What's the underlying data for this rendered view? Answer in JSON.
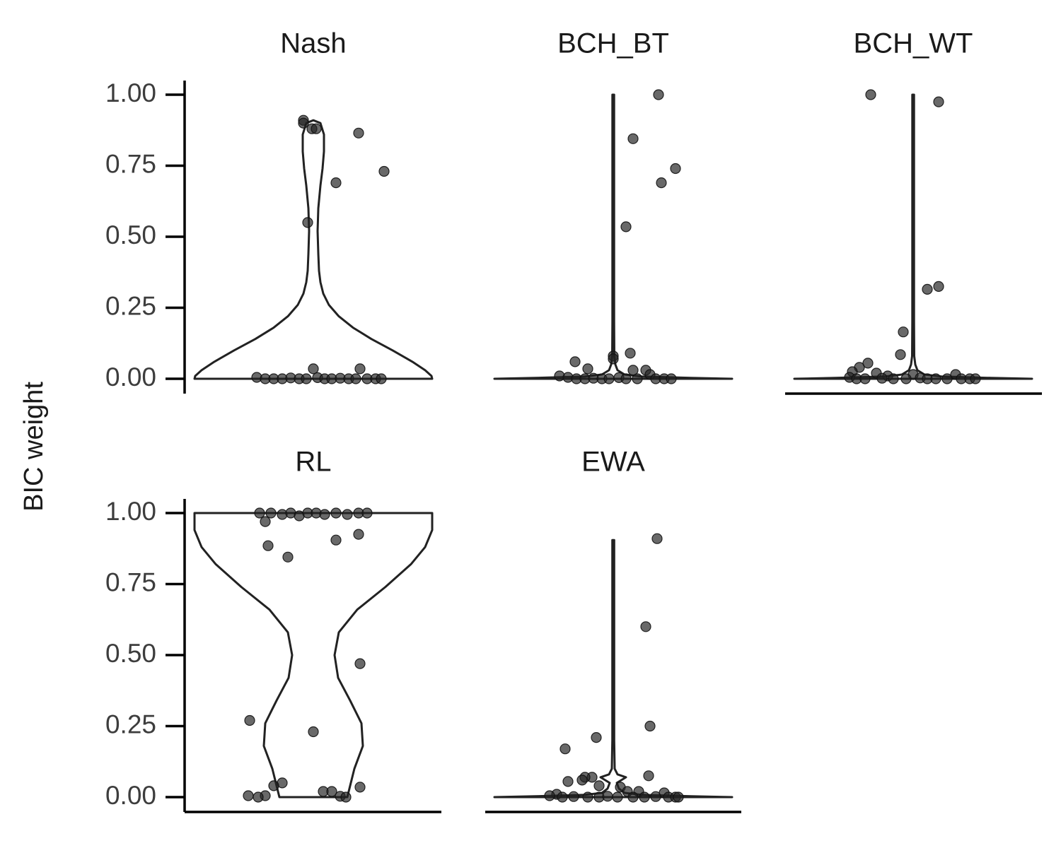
{
  "chart_data": {
    "type": "violin",
    "ylabel": "BIC weight",
    "ylim": [
      0,
      1
    ],
    "yticks": [
      "0.00",
      "0.25",
      "0.50",
      "0.75",
      "1.00"
    ],
    "grid": false,
    "point_color": "#222222",
    "line_color": "#222222",
    "panels": [
      {
        "title": "Nash",
        "violin_max": 0.91,
        "points": [
          {
            "y": 0.91,
            "j": -0.07
          },
          {
            "y": 0.9,
            "j": -0.07
          },
          {
            "y": 0.88,
            "j": -0.01
          },
          {
            "y": 0.88,
            "j": 0.02
          },
          {
            "y": 0.865,
            "j": 0.32
          },
          {
            "y": 0.73,
            "j": 0.5
          },
          {
            "y": 0.69,
            "j": 0.16
          },
          {
            "y": 0.55,
            "j": -0.04
          },
          {
            "y": 0.035,
            "j": 0.0
          },
          {
            "y": 0.035,
            "j": 0.33
          },
          {
            "y": 0.005,
            "j": -0.4
          },
          {
            "y": 0.0,
            "j": -0.34
          },
          {
            "y": 0.0,
            "j": -0.28
          },
          {
            "y": 0.0,
            "j": -0.22
          },
          {
            "y": 0.003,
            "j": -0.16
          },
          {
            "y": 0.0,
            "j": -0.1
          },
          {
            "y": 0.0,
            "j": -0.05
          },
          {
            "y": 0.004,
            "j": 0.03
          },
          {
            "y": 0.0,
            "j": 0.08
          },
          {
            "y": 0.0,
            "j": 0.13
          },
          {
            "y": 0.002,
            "j": 0.19
          },
          {
            "y": 0.0,
            "j": 0.25
          },
          {
            "y": 0.0,
            "j": 0.3
          },
          {
            "y": 0.0,
            "j": 0.38
          },
          {
            "y": 0.0,
            "j": 0.44
          },
          {
            "y": 0.0,
            "j": 0.48
          }
        ]
      },
      {
        "title": "BCH_BT",
        "violin_max": 1.0,
        "points": [
          {
            "y": 1.0,
            "j": 0.32
          },
          {
            "y": 0.845,
            "j": 0.14
          },
          {
            "y": 0.74,
            "j": 0.44
          },
          {
            "y": 0.69,
            "j": 0.34
          },
          {
            "y": 0.535,
            "j": 0.09
          },
          {
            "y": 0.09,
            "j": 0.12
          },
          {
            "y": 0.08,
            "j": 0.0
          },
          {
            "y": 0.07,
            "j": 0.0
          },
          {
            "y": 0.06,
            "j": -0.27
          },
          {
            "y": 0.035,
            "j": -0.18
          },
          {
            "y": 0.03,
            "j": 0.14
          },
          {
            "y": 0.03,
            "j": 0.23
          },
          {
            "y": 0.015,
            "j": 0.26
          },
          {
            "y": 0.01,
            "j": -0.38
          },
          {
            "y": 0.005,
            "j": -0.32
          },
          {
            "y": 0.0,
            "j": -0.26
          },
          {
            "y": 0.0,
            "j": -0.2
          },
          {
            "y": 0.002,
            "j": -0.14
          },
          {
            "y": 0.0,
            "j": -0.08
          },
          {
            "y": 0.0,
            "j": -0.03
          },
          {
            "y": 0.004,
            "j": 0.04
          },
          {
            "y": 0.0,
            "j": 0.09
          },
          {
            "y": 0.0,
            "j": 0.17
          },
          {
            "y": 0.0,
            "j": 0.3
          },
          {
            "y": 0.0,
            "j": 0.36
          },
          {
            "y": 0.0,
            "j": 0.41
          }
        ]
      },
      {
        "title": "BCH_WT",
        "violin_max": 1.0,
        "points": [
          {
            "y": 1.0,
            "j": -0.3
          },
          {
            "y": 0.975,
            "j": 0.18
          },
          {
            "y": 0.325,
            "j": 0.18
          },
          {
            "y": 0.315,
            "j": 0.1
          },
          {
            "y": 0.165,
            "j": -0.07
          },
          {
            "y": 0.085,
            "j": -0.09
          },
          {
            "y": 0.055,
            "j": -0.32
          },
          {
            "y": 0.04,
            "j": -0.38
          },
          {
            "y": 0.025,
            "j": -0.43
          },
          {
            "y": 0.02,
            "j": -0.26
          },
          {
            "y": 0.015,
            "j": 0.0
          },
          {
            "y": 0.015,
            "j": 0.3
          },
          {
            "y": 0.01,
            "j": -0.18
          },
          {
            "y": 0.005,
            "j": -0.45
          },
          {
            "y": 0.0,
            "j": -0.4
          },
          {
            "y": 0.0,
            "j": -0.34
          },
          {
            "y": 0.002,
            "j": -0.22
          },
          {
            "y": 0.0,
            "j": -0.14
          },
          {
            "y": 0.0,
            "j": -0.05
          },
          {
            "y": 0.003,
            "j": 0.05
          },
          {
            "y": 0.0,
            "j": 0.1
          },
          {
            "y": 0.0,
            "j": 0.16
          },
          {
            "y": 0.0,
            "j": 0.24
          },
          {
            "y": 0.0,
            "j": 0.34
          },
          {
            "y": 0.0,
            "j": 0.4
          },
          {
            "y": 0.0,
            "j": 0.44
          }
        ]
      },
      {
        "title": "RL",
        "violin_max": 1.0,
        "points": [
          {
            "y": 1.0,
            "j": -0.38
          },
          {
            "y": 1.0,
            "j": -0.3
          },
          {
            "y": 0.995,
            "j": -0.22
          },
          {
            "y": 1.0,
            "j": -0.16
          },
          {
            "y": 0.99,
            "j": -0.1
          },
          {
            "y": 1.0,
            "j": -0.04
          },
          {
            "y": 1.0,
            "j": 0.02
          },
          {
            "y": 0.995,
            "j": 0.08
          },
          {
            "y": 1.0,
            "j": 0.16
          },
          {
            "y": 0.995,
            "j": 0.24
          },
          {
            "y": 1.0,
            "j": 0.32
          },
          {
            "y": 1.0,
            "j": 0.38
          },
          {
            "y": 0.97,
            "j": -0.34
          },
          {
            "y": 0.925,
            "j": 0.32
          },
          {
            "y": 0.905,
            "j": 0.16
          },
          {
            "y": 0.885,
            "j": -0.32
          },
          {
            "y": 0.845,
            "j": -0.18
          },
          {
            "y": 0.47,
            "j": 0.33
          },
          {
            "y": 0.27,
            "j": -0.45
          },
          {
            "y": 0.23,
            "j": -0.0
          },
          {
            "y": 0.05,
            "j": -0.22
          },
          {
            "y": 0.04,
            "j": -0.28
          },
          {
            "y": 0.035,
            "j": 0.33
          },
          {
            "y": 0.02,
            "j": 0.07
          },
          {
            "y": 0.02,
            "j": 0.13
          },
          {
            "y": 0.005,
            "j": -0.46
          },
          {
            "y": 0.005,
            "j": -0.34
          },
          {
            "y": 0.0,
            "j": -0.39
          },
          {
            "y": 0.003,
            "j": 0.19
          },
          {
            "y": 0.0,
            "j": 0.23
          }
        ]
      },
      {
        "title": "EWA",
        "violin_max": 0.905,
        "points": [
          {
            "y": 0.91,
            "j": 0.31
          },
          {
            "y": 0.6,
            "j": 0.23
          },
          {
            "y": 0.25,
            "j": 0.26
          },
          {
            "y": 0.21,
            "j": -0.12
          },
          {
            "y": 0.17,
            "j": -0.34
          },
          {
            "y": 0.075,
            "j": 0.25
          },
          {
            "y": 0.07,
            "j": -0.15
          },
          {
            "y": 0.07,
            "j": -0.2
          },
          {
            "y": 0.06,
            "j": -0.22
          },
          {
            "y": 0.055,
            "j": -0.32
          },
          {
            "y": 0.04,
            "j": -0.1
          },
          {
            "y": 0.035,
            "j": 0.05
          },
          {
            "y": 0.02,
            "j": 0.1
          },
          {
            "y": 0.02,
            "j": 0.18
          },
          {
            "y": 0.015,
            "j": 0.36
          },
          {
            "y": 0.01,
            "j": -0.4
          },
          {
            "y": 0.005,
            "j": -0.45
          },
          {
            "y": 0.0,
            "j": -0.36
          },
          {
            "y": 0.002,
            "j": -0.28
          },
          {
            "y": 0.0,
            "j": -0.18
          },
          {
            "y": 0.0,
            "j": -0.1
          },
          {
            "y": 0.003,
            "j": -0.04
          },
          {
            "y": 0.0,
            "j": 0.03
          },
          {
            "y": 0.0,
            "j": 0.14
          },
          {
            "y": 0.0,
            "j": 0.22
          },
          {
            "y": 0.002,
            "j": 0.3
          },
          {
            "y": 0.0,
            "j": 0.39
          },
          {
            "y": 0.0,
            "j": 0.44
          },
          {
            "y": 0.0,
            "j": 0.46
          }
        ]
      }
    ]
  }
}
